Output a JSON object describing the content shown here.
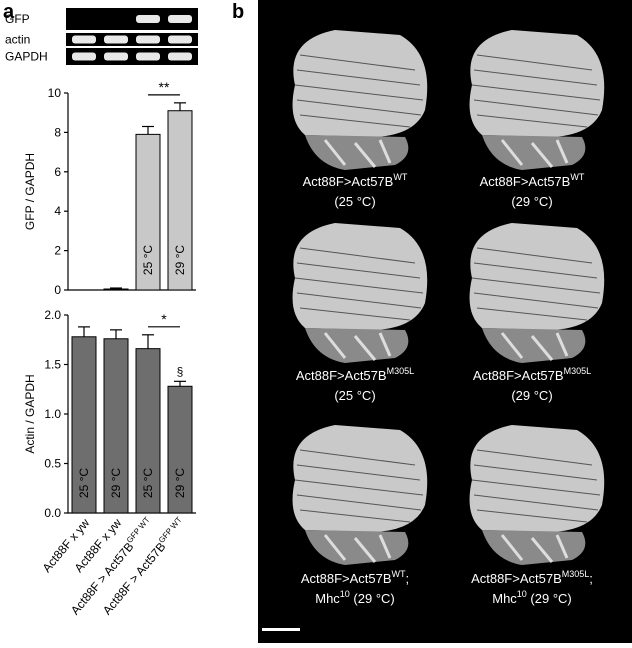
{
  "panel_labels": [
    "a",
    "b"
  ],
  "gel": {
    "labels": [
      "GFP",
      "actin",
      "GAPDH"
    ]
  },
  "chart_data": [
    {
      "type": "bar",
      "ylabel": "GFP / GAPDH",
      "categories": [
        null,
        null,
        null,
        null
      ],
      "values": [
        0,
        0.05,
        7.9,
        9.1
      ],
      "errors": [
        0,
        0.05,
        0.4,
        0.4
      ],
      "bar_labels": [
        null,
        null,
        "25 °C",
        "29 °C"
      ],
      "significance": [
        "**"
      ],
      "annotation": [],
      "color": "#c8c8c8",
      "ylim": [
        0,
        10
      ],
      "yticks": [
        0,
        2,
        4,
        6,
        8,
        10
      ]
    },
    {
      "type": "bar",
      "ylabel": "Actin / GAPDH",
      "categories": [
        "Act88F x yw",
        "Act88F x yw",
        "Act88F > Act57B",
        "Act88F > Act57B"
      ],
      "category_superscripts": [
        null,
        null,
        "GFP WT",
        "GFP WT"
      ],
      "values": [
        1.78,
        1.76,
        1.66,
        1.28
      ],
      "errors": [
        0.1,
        0.09,
        0.14,
        0.05
      ],
      "bar_labels": [
        "25 °C",
        "29 °C",
        "25 °C",
        "29 °C"
      ],
      "significance": [
        "*"
      ],
      "annotation": [
        "§"
      ],
      "color": "#6e6e6e",
      "ylim": [
        0,
        2
      ],
      "yticks": [
        {
          "value": 0,
          "label": "0.0"
        },
        {
          "value": 0.5,
          "label": "0.5"
        },
        {
          "value": 1,
          "label": "1.0"
        },
        {
          "value": 1.5,
          "label": "1.5"
        },
        {
          "value": 2,
          "label": "2.0"
        }
      ]
    }
  ],
  "figure_b": {
    "captions": [
      [
        [
          {
            "text": "Act88F>Act57B"
          },
          {
            "text": "WT",
            "sup": true
          }
        ],
        [
          {
            "text": "(25 °C)"
          }
        ]
      ],
      [
        [
          {
            "text": "Act88F>Act57B"
          },
          {
            "text": "WT",
            "sup": true
          }
        ],
        [
          {
            "text": "(29 °C)"
          }
        ]
      ],
      [
        [
          {
            "text": "Act88F>Act57B"
          },
          {
            "text": "M305L",
            "sup": true
          }
        ],
        [
          {
            "text": "(25 °C)"
          }
        ]
      ],
      [
        [
          {
            "text": "Act88F>Act57B"
          },
          {
            "text": "M305L",
            "sup": true
          }
        ],
        [
          {
            "text": "(29 °C)"
          }
        ]
      ],
      [
        [
          {
            "text": "Act88F>Act57B"
          },
          {
            "text": "WT",
            "sup": true
          },
          {
            "text": ";"
          }
        ],
        [
          {
            "text": "Mhc"
          },
          {
            "text": "10",
            "sup": true
          },
          {
            "text": " (29 °C)"
          }
        ]
      ],
      [
        [
          {
            "text": "Act88F>Act57B"
          },
          {
            "text": "M305L",
            "sup": true
          },
          {
            "text": ";"
          }
        ],
        [
          {
            "text": "Mhc"
          },
          {
            "text": "10",
            "sup": true
          },
          {
            "text": " (29 °C)"
          }
        ]
      ]
    ]
  }
}
